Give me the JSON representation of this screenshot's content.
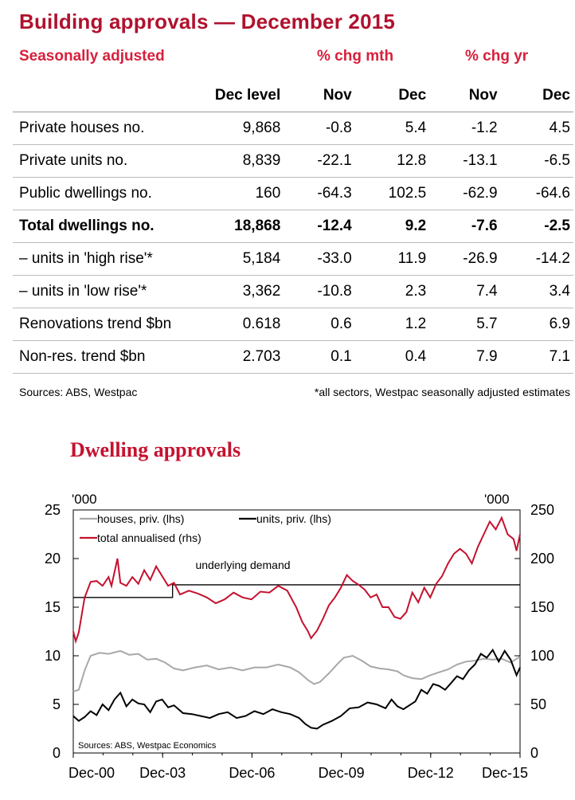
{
  "title": "Building approvals — December 2015",
  "table": {
    "sa_label": "Seasonally adjusted",
    "group_mth": "% chg mth",
    "group_yr": "% chg yr",
    "columns": [
      "Dec level",
      "Nov",
      "Dec",
      "Nov",
      "Dec"
    ],
    "rows": [
      {
        "label": "Private houses no.",
        "values": [
          "9,868",
          "-0.8",
          "5.4",
          "-1.2",
          "4.5"
        ],
        "bold": false
      },
      {
        "label": "Private units no.",
        "values": [
          "8,839",
          "-22.1",
          "12.8",
          "-13.1",
          "-6.5"
        ],
        "bold": false
      },
      {
        "label": "Public dwellings no.",
        "values": [
          "160",
          "-64.3",
          "102.5",
          "-62.9",
          "-64.6"
        ],
        "bold": false
      },
      {
        "label": "Total dwellings no.",
        "values": [
          "18,868",
          "-12.4",
          "9.2",
          "-7.6",
          "-2.5"
        ],
        "bold": true
      },
      {
        "label": "– units in 'high rise'*",
        "values": [
          "5,184",
          "-33.0",
          "11.9",
          "-26.9",
          "-14.2"
        ],
        "bold": false
      },
      {
        "label": "– units in 'low rise'*",
        "values": [
          "3,362",
          "-10.8",
          "2.3",
          "7.4",
          "3.4"
        ],
        "bold": false
      },
      {
        "label": "Renovations trend $bn",
        "values": [
          "0.618",
          "0.6",
          "1.2",
          "5.7",
          "6.9"
        ],
        "bold": false
      },
      {
        "label": "Non-res. trend $bn",
        "values": [
          "2.703",
          "0.1",
          "0.4",
          "7.9",
          "7.1"
        ],
        "bold": false
      }
    ],
    "source_left": "Sources: ABS, Westpac",
    "source_right": "*all sectors, Westpac seasonally adjusted estimates"
  },
  "chart_title": "Dwelling approvals",
  "chart_data": {
    "type": "line",
    "title": "Dwelling approvals",
    "y_left_label": "'000",
    "y_right_label": "'000",
    "ylim_left": [
      0,
      25
    ],
    "ylim_right": [
      0,
      250
    ],
    "y_left_ticks": [
      "0",
      "5",
      "10",
      "15",
      "20",
      "25"
    ],
    "y_right_ticks": [
      "0",
      "50",
      "100",
      "150",
      "200",
      "250"
    ],
    "x_ticks": [
      "Dec-00",
      "Dec-03",
      "Dec-06",
      "Dec-09",
      "Dec-12",
      "Dec-15"
    ],
    "x_anchor_years": [
      2000,
      2003,
      2006,
      2009,
      2012,
      2015
    ],
    "legend": "top-left",
    "grid": false,
    "annotation": "underlying demand",
    "source": "Sources: ABS, Westpac Economics",
    "underlying_demand": {
      "axis": "rhs",
      "segments": [
        {
          "x": [
            2000.917,
            2004.25
          ],
          "y": 160
        },
        {
          "x": [
            2004.25,
            2015.917
          ],
          "y": 173
        }
      ]
    },
    "series": [
      {
        "name": "houses, priv. (lhs)",
        "axis": "lhs",
        "color": "#a8a8a8",
        "points": [
          [
            2000.917,
            6.3
          ],
          [
            2001.1,
            6.5
          ],
          [
            2001.3,
            8.5
          ],
          [
            2001.5,
            10
          ],
          [
            2001.8,
            10.3
          ],
          [
            2002.1,
            10.2
          ],
          [
            2002.5,
            10.5
          ],
          [
            2002.8,
            10.1
          ],
          [
            2003.1,
            10.2
          ],
          [
            2003.4,
            9.6
          ],
          [
            2003.7,
            9.7
          ],
          [
            2004.0,
            9.3
          ],
          [
            2004.3,
            8.7
          ],
          [
            2004.6,
            8.5
          ],
          [
            2005.0,
            8.8
          ],
          [
            2005.4,
            9.0
          ],
          [
            2005.8,
            8.6
          ],
          [
            2006.2,
            8.8
          ],
          [
            2006.6,
            8.5
          ],
          [
            2007.0,
            8.8
          ],
          [
            2007.4,
            8.8
          ],
          [
            2007.8,
            9.1
          ],
          [
            2008.2,
            8.8
          ],
          [
            2008.5,
            8.3
          ],
          [
            2008.8,
            7.5
          ],
          [
            2009.0,
            7.1
          ],
          [
            2009.2,
            7.3
          ],
          [
            2009.5,
            8.2
          ],
          [
            2009.8,
            9.2
          ],
          [
            2010.0,
            9.8
          ],
          [
            2010.3,
            10.0
          ],
          [
            2010.6,
            9.5
          ],
          [
            2010.9,
            8.9
          ],
          [
            2011.2,
            8.7
          ],
          [
            2011.5,
            8.6
          ],
          [
            2011.8,
            8.4
          ],
          [
            2012.0,
            8.0
          ],
          [
            2012.3,
            7.7
          ],
          [
            2012.6,
            7.6
          ],
          [
            2012.9,
            8.0
          ],
          [
            2013.2,
            8.3
          ],
          [
            2013.5,
            8.6
          ],
          [
            2013.8,
            9.1
          ],
          [
            2014.1,
            9.4
          ],
          [
            2014.4,
            9.5
          ],
          [
            2014.7,
            9.7
          ],
          [
            2015.0,
            9.6
          ],
          [
            2015.3,
            9.7
          ],
          [
            2015.6,
            9.3
          ],
          [
            2015.917,
            9.9
          ]
        ]
      },
      {
        "name": "units, priv. (lhs)",
        "axis": "lhs",
        "color": "#000000",
        "points": [
          [
            2000.917,
            3.8
          ],
          [
            2001.1,
            3.3
          ],
          [
            2001.3,
            3.7
          ],
          [
            2001.5,
            4.3
          ],
          [
            2001.7,
            3.9
          ],
          [
            2001.9,
            5.0
          ],
          [
            2002.1,
            4.4
          ],
          [
            2002.3,
            5.5
          ],
          [
            2002.5,
            6.2
          ],
          [
            2002.7,
            4.8
          ],
          [
            2002.9,
            5.5
          ],
          [
            2003.1,
            5.1
          ],
          [
            2003.3,
            5.0
          ],
          [
            2003.5,
            4.2
          ],
          [
            2003.7,
            5.3
          ],
          [
            2003.9,
            5.5
          ],
          [
            2004.1,
            4.7
          ],
          [
            2004.3,
            4.9
          ],
          [
            2004.6,
            4.1
          ],
          [
            2004.9,
            4.0
          ],
          [
            2005.2,
            3.8
          ],
          [
            2005.5,
            3.6
          ],
          [
            2005.8,
            4.0
          ],
          [
            2006.1,
            4.2
          ],
          [
            2006.4,
            3.6
          ],
          [
            2006.7,
            3.8
          ],
          [
            2007.0,
            4.3
          ],
          [
            2007.3,
            4.0
          ],
          [
            2007.6,
            4.5
          ],
          [
            2007.9,
            4.2
          ],
          [
            2008.2,
            4.0
          ],
          [
            2008.5,
            3.6
          ],
          [
            2008.7,
            3.0
          ],
          [
            2008.9,
            2.6
          ],
          [
            2009.1,
            2.5
          ],
          [
            2009.3,
            2.9
          ],
          [
            2009.6,
            3.3
          ],
          [
            2009.9,
            3.8
          ],
          [
            2010.2,
            4.6
          ],
          [
            2010.5,
            4.7
          ],
          [
            2010.8,
            5.2
          ],
          [
            2011.1,
            5.0
          ],
          [
            2011.4,
            4.6
          ],
          [
            2011.6,
            5.5
          ],
          [
            2011.8,
            4.8
          ],
          [
            2012.0,
            4.5
          ],
          [
            2012.2,
            4.9
          ],
          [
            2012.4,
            5.3
          ],
          [
            2012.6,
            6.5
          ],
          [
            2012.8,
            6.1
          ],
          [
            2013.0,
            7.1
          ],
          [
            2013.2,
            6.9
          ],
          [
            2013.4,
            6.5
          ],
          [
            2013.6,
            7.2
          ],
          [
            2013.8,
            7.9
          ],
          [
            2014.0,
            7.6
          ],
          [
            2014.2,
            8.5
          ],
          [
            2014.4,
            9.1
          ],
          [
            2014.6,
            10.2
          ],
          [
            2014.8,
            9.8
          ],
          [
            2015.0,
            10.6
          ],
          [
            2015.2,
            9.4
          ],
          [
            2015.4,
            10.5
          ],
          [
            2015.6,
            9.6
          ],
          [
            2015.8,
            8.0
          ],
          [
            2015.917,
            8.8
          ]
        ]
      },
      {
        "name": "total annualised (rhs)",
        "axis": "rhs",
        "color": "#c4122f",
        "points": [
          [
            2000.917,
            125
          ],
          [
            2001.0,
            115
          ],
          [
            2001.1,
            124
          ],
          [
            2001.3,
            160
          ],
          [
            2001.5,
            176
          ],
          [
            2001.7,
            177
          ],
          [
            2001.9,
            172
          ],
          [
            2002.1,
            181
          ],
          [
            2002.2,
            172
          ],
          [
            2002.4,
            200
          ],
          [
            2002.5,
            175
          ],
          [
            2002.7,
            172
          ],
          [
            2002.9,
            181
          ],
          [
            2003.1,
            174
          ],
          [
            2003.3,
            188
          ],
          [
            2003.5,
            178
          ],
          [
            2003.7,
            192
          ],
          [
            2003.9,
            182
          ],
          [
            2004.1,
            172
          ],
          [
            2004.3,
            175
          ],
          [
            2004.5,
            163
          ],
          [
            2004.8,
            167
          ],
          [
            2005.1,
            164
          ],
          [
            2005.4,
            160
          ],
          [
            2005.7,
            154
          ],
          [
            2006.0,
            158
          ],
          [
            2006.3,
            165
          ],
          [
            2006.6,
            160
          ],
          [
            2006.9,
            158
          ],
          [
            2007.2,
            166
          ],
          [
            2007.5,
            165
          ],
          [
            2007.8,
            172
          ],
          [
            2008.1,
            167
          ],
          [
            2008.4,
            150
          ],
          [
            2008.6,
            135
          ],
          [
            2008.8,
            125
          ],
          [
            2008.9,
            118
          ],
          [
            2009.1,
            126
          ],
          [
            2009.3,
            138
          ],
          [
            2009.5,
            152
          ],
          [
            2009.7,
            160
          ],
          [
            2009.9,
            170
          ],
          [
            2010.1,
            183
          ],
          [
            2010.3,
            177
          ],
          [
            2010.5,
            173
          ],
          [
            2010.7,
            168
          ],
          [
            2010.9,
            160
          ],
          [
            2011.1,
            163
          ],
          [
            2011.3,
            150
          ],
          [
            2011.5,
            150
          ],
          [
            2011.7,
            140
          ],
          [
            2011.9,
            138
          ],
          [
            2012.1,
            145
          ],
          [
            2012.3,
            165
          ],
          [
            2012.5,
            155
          ],
          [
            2012.7,
            170
          ],
          [
            2012.9,
            160
          ],
          [
            2013.1,
            174
          ],
          [
            2013.3,
            182
          ],
          [
            2013.5,
            195
          ],
          [
            2013.7,
            205
          ],
          [
            2013.9,
            210
          ],
          [
            2014.1,
            205
          ],
          [
            2014.3,
            195
          ],
          [
            2014.5,
            212
          ],
          [
            2014.7,
            225
          ],
          [
            2014.9,
            238
          ],
          [
            2015.1,
            230
          ],
          [
            2015.3,
            242
          ],
          [
            2015.5,
            225
          ],
          [
            2015.7,
            220
          ],
          [
            2015.8,
            208
          ],
          [
            2015.917,
            225
          ]
        ]
      }
    ]
  }
}
